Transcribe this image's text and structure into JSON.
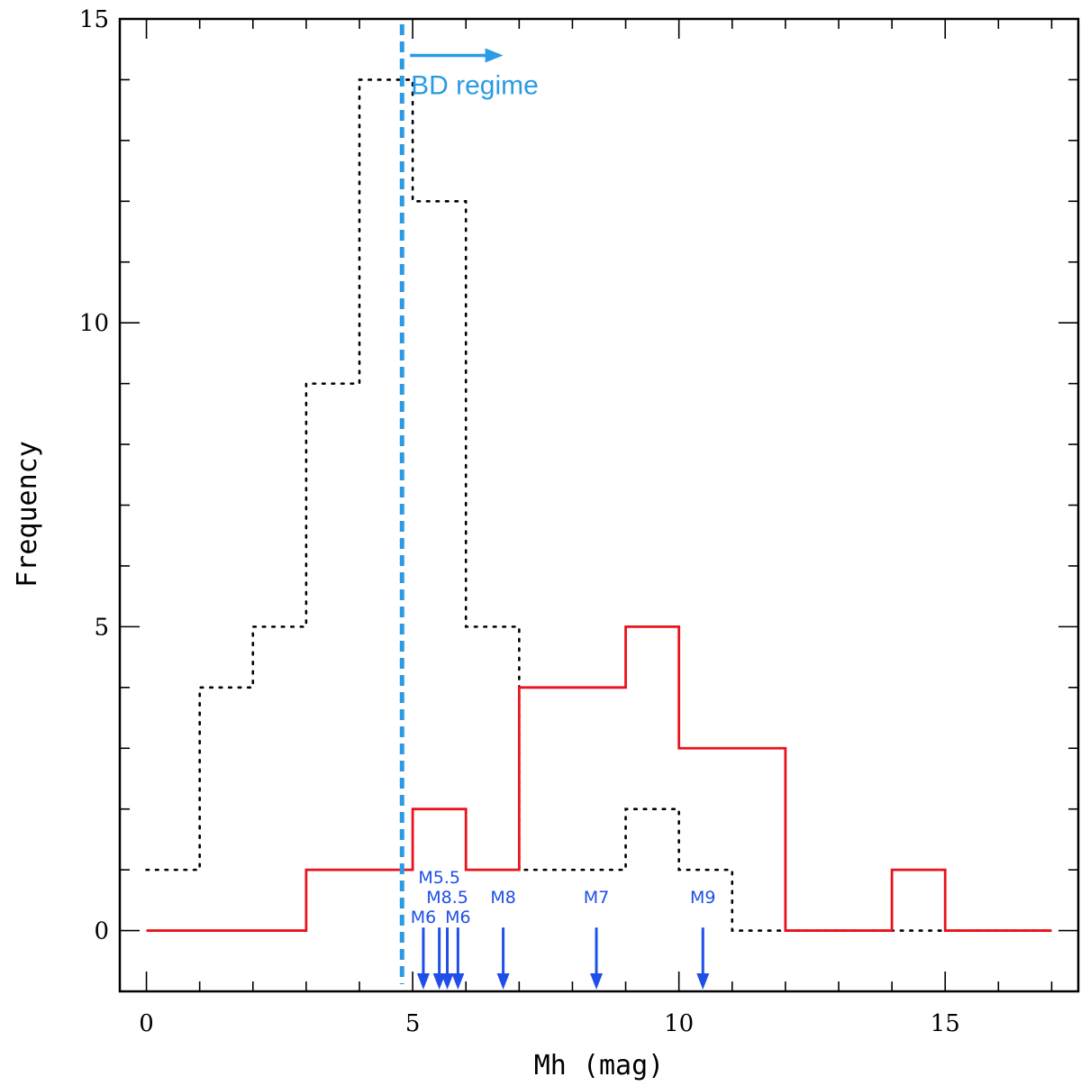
{
  "chart_data": {
    "type": "histogram",
    "title": "",
    "xlabel": "Mh (mag)",
    "ylabel": "Frequency",
    "xlim": [
      -0.5,
      17.5
    ],
    "ylim": [
      -1,
      15
    ],
    "x_ticks_major": [
      0,
      5,
      10,
      15
    ],
    "x_tick_labels": [
      "0",
      "5",
      "10",
      "15"
    ],
    "y_ticks_major": [
      0,
      5,
      10,
      15
    ],
    "y_tick_labels": [
      "0",
      "5",
      "10",
      "15"
    ],
    "x_minor_step": 1,
    "y_minor_step": 1,
    "series": [
      {
        "name": "dotted histogram",
        "style": "dotted",
        "color": "#000000",
        "bin_edges": [
          0,
          1,
          2,
          3,
          4,
          5,
          6,
          7,
          8,
          9,
          10,
          11,
          12,
          13,
          14,
          15,
          16,
          17
        ],
        "values": [
          1,
          4,
          5,
          9,
          14,
          12,
          5,
          1,
          1,
          2,
          1,
          0,
          0,
          0,
          0,
          0,
          0
        ]
      },
      {
        "name": "solid histogram",
        "style": "solid",
        "color": "#e8141c",
        "bin_edges": [
          0,
          1,
          2,
          3,
          4,
          5,
          6,
          7,
          8,
          9,
          10,
          11,
          12,
          13,
          14,
          15,
          16,
          17
        ],
        "values": [
          0,
          0,
          0,
          1,
          1,
          2,
          1,
          4,
          4,
          5,
          3,
          3,
          0,
          0,
          1,
          0,
          0
        ]
      }
    ],
    "vertical_line": {
      "x": 4.8,
      "color": "#2a9be4",
      "style": "dashed"
    },
    "annotation": {
      "text": "BD regime",
      "x": 5.0,
      "y": 14.0,
      "arrow_from": 4.95,
      "arrow_to": 6.7,
      "arrow_y": 14.4,
      "color": "#2a9be4"
    },
    "markers": [
      {
        "label": "M6",
        "x": 5.2,
        "label_y": 0.1
      },
      {
        "label": "M5.5",
        "x": 5.5,
        "label_y": 0.75
      },
      {
        "label": "M8.5",
        "x": 5.65,
        "label_y": 0.42
      },
      {
        "label": "M6",
        "x": 5.85,
        "label_y": 0.1
      },
      {
        "label": "M8",
        "x": 6.7,
        "label_y": 0.42
      },
      {
        "label": "M7",
        "x": 8.45,
        "label_y": 0.42
      },
      {
        "label": "M9",
        "x": 10.45,
        "label_y": 0.42
      }
    ],
    "marker_color": "#1f4fe6",
    "marker_arrow_top": 0.05,
    "marker_arrow_bottom": -1.0
  }
}
